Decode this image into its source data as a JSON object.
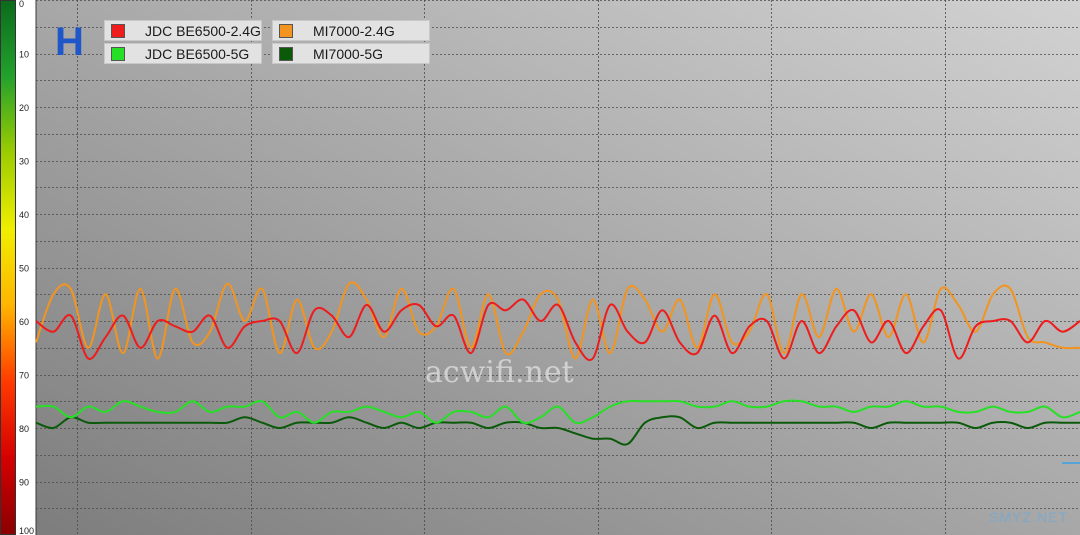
{
  "panel_letter": "H",
  "watermarks": {
    "center": "acwifi.net",
    "corner": "SMYZ.NET"
  },
  "colors": {
    "background_gradient": [
      "#7d7d7d",
      "#d2d2d2"
    ],
    "grid": "#4a4a4a",
    "scale_bar": [
      "#0b6b1c",
      "#23a12c",
      "#9ccc00",
      "#f0ee00",
      "#ffb400",
      "#ff3a00",
      "#d40000",
      "#8a0000"
    ]
  },
  "chart_data": {
    "type": "line",
    "title": "",
    "xlabel": "",
    "ylabel": "",
    "ylim": [
      0,
      100
    ],
    "y_inverted": true,
    "y_ticks": [
      "0",
      "10",
      "20",
      "30",
      "40",
      "50",
      "60",
      "70",
      "80",
      "90",
      "100"
    ],
    "grid": true,
    "legend": {
      "position": "top-left",
      "items": [
        {
          "name": "JDC BE6500-2.4G",
          "color": "#ee1c1c"
        },
        {
          "name": "MI7000-2.4G",
          "color": "#f2941e"
        },
        {
          "name": "JDC BE6500-5G",
          "color": "#26e026"
        },
        {
          "name": "MI7000-5G",
          "color": "#0a5a0a"
        }
      ]
    },
    "x": [
      0,
      1,
      2,
      3,
      4,
      5,
      6,
      7,
      8,
      9,
      10,
      11,
      12,
      13,
      14,
      15,
      16,
      17,
      18,
      19,
      20,
      21,
      22,
      23,
      24,
      25,
      26,
      27,
      28,
      29,
      30,
      31,
      32,
      33,
      34,
      35,
      36,
      37,
      38,
      39,
      40,
      41,
      42,
      43,
      44,
      45,
      46,
      47,
      48,
      49,
      50,
      51,
      52,
      53,
      54,
      55,
      56,
      57,
      58,
      59,
      60
    ],
    "series": [
      {
        "name": "JDC BE6500-2.4G",
        "color": "#ee1c1c",
        "values": [
          60,
          62,
          59,
          67,
          63,
          59,
          65,
          60,
          61,
          62,
          59,
          65,
          61,
          60,
          60,
          66,
          58,
          59,
          63,
          57,
          62,
          58,
          57,
          61,
          59,
          66,
          57,
          58,
          56,
          60,
          57,
          64,
          67,
          57,
          62,
          64,
          58,
          64,
          66,
          59,
          66,
          61,
          60,
          67,
          60,
          66,
          61,
          58,
          64,
          60,
          66,
          61,
          58,
          67,
          61,
          60,
          60,
          64,
          60,
          62,
          60
        ]
      },
      {
        "name": "MI7000-2.4G",
        "color": "#f2941e",
        "values": [
          64,
          55,
          54,
          65,
          55,
          66,
          54,
          67,
          54,
          64,
          62,
          53,
          60,
          54,
          66,
          56,
          65,
          62,
          53,
          56,
          63,
          54,
          62,
          61,
          54,
          65,
          55,
          66,
          62,
          55,
          56,
          67,
          56,
          66,
          54,
          56,
          62,
          56,
          65,
          55,
          64,
          62,
          55,
          66,
          55,
          63,
          54,
          62,
          55,
          63,
          55,
          64,
          54,
          57,
          62,
          55,
          54,
          63,
          64,
          65,
          65
        ]
      },
      {
        "name": "JDC BE6500-5G",
        "color": "#26e026",
        "values": [
          76,
          76,
          78,
          76,
          77,
          75,
          76,
          77,
          77,
          75,
          77,
          76,
          76,
          75,
          78,
          77,
          79,
          77,
          77,
          76,
          77,
          78,
          77,
          79,
          77,
          77,
          78,
          76,
          79,
          78,
          76,
          79,
          78,
          76,
          75,
          75,
          75,
          75,
          76,
          76,
          75,
          76,
          76,
          75,
          75,
          76,
          76,
          77,
          76,
          76,
          75,
          76,
          76,
          77,
          77,
          76,
          77,
          77,
          76,
          78,
          77
        ]
      },
      {
        "name": "MI7000-5G",
        "color": "#0a5a0a",
        "values": [
          79,
          80,
          78,
          79,
          79,
          79,
          79,
          79,
          79,
          79,
          79,
          79,
          78,
          79,
          80,
          79,
          79,
          79,
          78,
          79,
          80,
          79,
          80,
          79,
          79,
          79,
          80,
          79,
          79,
          80,
          80,
          81,
          82,
          82,
          83,
          79,
          78,
          78,
          80,
          79,
          79,
          79,
          79,
          79,
          79,
          79,
          79,
          79,
          80,
          79,
          79,
          79,
          79,
          79,
          80,
          79,
          79,
          80,
          79,
          79,
          79
        ]
      }
    ]
  }
}
